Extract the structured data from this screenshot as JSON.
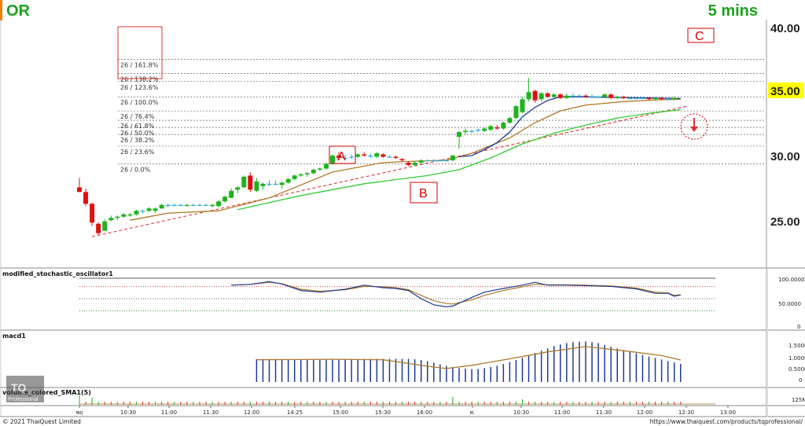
{
  "header": {
    "symbol": "OR",
    "timeframe": "5 mins",
    "symbol_color": "#1aa31a",
    "timeframe_color": "#1aa31a"
  },
  "footer": {
    "copyright": "© 2021 ThaiQuest Limited",
    "url": "https://www.thaiquest.com/products/tqprofessional/"
  },
  "price_axis": {
    "labels": [
      "40.00",
      "35.00",
      "30.00",
      "25.00"
    ],
    "current_price": "35.00",
    "current_price_bg": "#ffff00"
  },
  "fibonacci": {
    "labels": [
      "26 / 161.8%",
      "26 / 138.2%",
      "26 / 123.6%",
      "26 / 100.0%",
      "26 / 76.4%",
      "26 / 61.8%",
      "26 / 50.0%",
      "26 / 38.2%",
      "26 / 23.6%",
      "26 / 0.0%"
    ],
    "prices": [
      38.2,
      37.0,
      36.3,
      35.0,
      33.8,
      33.0,
      32.4,
      31.8,
      30.8,
      29.3
    ]
  },
  "annotations": {
    "a": "A",
    "b": "B",
    "c": "C"
  },
  "panels": {
    "stochastic": {
      "name": "modified_stochastic_oscillator1",
      "axis": [
        "100.0000",
        "50.0000",
        "0"
      ]
    },
    "macd": {
      "name": "macd1",
      "axis": [
        "1.5000",
        "1.0000",
        "0.5000",
        "0"
      ]
    },
    "volume": {
      "name": "volume_colored_SMA1(5)",
      "axis": [
        "125M"
      ]
    }
  },
  "x_axis": {
    "labels": [
      "พฤ",
      "10:30",
      "11:00",
      "11:30",
      "12:00",
      "14:25",
      "15:00",
      "15:30",
      "16:00",
      "ศ.",
      "10:30",
      "11:00",
      "11:30",
      "12:00",
      "12:30",
      "13:00"
    ]
  },
  "chart_data": {
    "type": "candlestick",
    "ylim": [
      20.5,
      41.5
    ],
    "colors": {
      "up": "#1fb31f",
      "down": "#e01010",
      "doji": "#20b0d8",
      "ma_fast": "#1f3a93",
      "ma_mid": "#b07a2a",
      "ma_slow": "#33cc33",
      "trend": "#e03030"
    },
    "candles": [
      [
        27.3,
        28.1,
        26.9,
        26.9
      ],
      [
        26.9,
        27.2,
        25.7,
        25.9
      ],
      [
        25.9,
        26.0,
        24.0,
        24.3
      ],
      [
        24.2,
        24.3,
        23.2,
        23.4
      ],
      [
        23.6,
        24.6,
        23.6,
        24.4
      ],
      [
        24.5,
        24.9,
        24.4,
        24.7
      ],
      [
        24.7,
        24.9,
        24.5,
        24.8
      ],
      [
        24.8,
        25.1,
        24.7,
        25.0
      ],
      [
        24.9,
        25.1,
        24.8,
        25.0
      ],
      [
        25.0,
        25.4,
        24.9,
        25.3
      ],
      [
        25.3,
        25.4,
        25.1,
        25.3
      ],
      [
        25.3,
        25.6,
        25.2,
        25.5
      ],
      [
        25.3,
        25.6,
        25.1,
        25.5
      ],
      [
        25.5,
        25.9,
        25.5,
        25.8
      ],
      [
        25.8,
        25.9,
        25.6,
        25.8
      ],
      [
        25.8,
        25.9,
        25.7,
        25.8
      ],
      [
        25.8,
        25.9,
        25.7,
        25.8
      ],
      [
        25.7,
        25.9,
        25.7,
        25.8
      ],
      [
        25.8,
        25.9,
        25.7,
        25.8
      ],
      [
        25.8,
        25.9,
        25.7,
        25.8
      ],
      [
        25.8,
        25.9,
        25.7,
        25.8
      ],
      [
        25.7,
        25.9,
        25.6,
        25.8
      ],
      [
        25.7,
        26.2,
        25.6,
        26.1
      ],
      [
        26.1,
        26.6,
        26.0,
        26.5
      ],
      [
        26.4,
        27.2,
        26.4,
        27.0
      ],
      [
        27.1,
        27.4,
        26.8,
        27.3
      ],
      [
        27.3,
        28.3,
        27.2,
        28.2
      ],
      [
        28.3,
        28.6,
        26.9,
        27.1
      ],
      [
        27.0,
        28.1,
        26.9,
        27.8
      ],
      [
        27.4,
        27.7,
        27.1,
        27.6
      ],
      [
        27.6,
        27.9,
        27.4,
        27.6
      ],
      [
        27.6,
        27.9,
        27.5,
        27.6
      ],
      [
        27.5,
        27.8,
        27.2,
        27.7
      ],
      [
        27.7,
        28.1,
        27.6,
        28.0
      ],
      [
        28.0,
        28.4,
        27.9,
        28.3
      ],
      [
        28.3,
        28.5,
        28.2,
        28.4
      ],
      [
        28.4,
        28.6,
        28.2,
        28.5
      ],
      [
        28.5,
        28.9,
        28.4,
        28.8
      ],
      [
        28.8,
        29.0,
        28.7,
        28.9
      ],
      [
        28.9,
        29.4,
        28.8,
        29.3
      ],
      [
        29.3,
        30.1,
        29.2,
        30.0
      ],
      [
        30.0,
        30.3,
        29.6,
        29.8
      ],
      [
        29.8,
        30.1,
        29.6,
        29.8
      ],
      [
        29.9,
        30.1,
        29.7,
        29.9
      ],
      [
        29.9,
        30.2,
        29.8,
        30.1
      ],
      [
        30.1,
        30.3,
        29.9,
        30.0
      ],
      [
        30.0,
        30.2,
        29.8,
        30.0
      ],
      [
        29.9,
        30.3,
        29.8,
        30.2
      ],
      [
        30.1,
        30.2,
        29.8,
        29.9
      ],
      [
        29.9,
        30.0,
        29.8,
        29.9
      ],
      [
        29.9,
        30.0,
        29.7,
        29.8
      ],
      [
        29.7,
        29.8,
        29.5,
        29.6
      ],
      [
        29.4,
        29.5,
        29.1,
        29.2
      ],
      [
        29.2,
        29.5,
        29.1,
        29.4
      ],
      [
        29.4,
        29.7,
        29.3,
        29.6
      ],
      [
        29.6,
        29.7,
        29.5,
        29.6
      ],
      [
        29.6,
        29.7,
        29.5,
        29.6
      ],
      [
        29.6,
        29.7,
        29.5,
        29.6
      ],
      [
        29.6,
        29.7,
        29.5,
        29.6
      ],
      [
        29.6,
        30.1,
        29.5,
        30.0
      ],
      [
        31.6,
        32.1,
        30.6,
        32.0
      ],
      [
        32.0,
        32.3,
        31.8,
        32.1
      ],
      [
        32.1,
        32.2,
        31.9,
        32.1
      ],
      [
        32.2,
        32.3,
        32.0,
        32.2
      ],
      [
        32.1,
        32.4,
        32.0,
        32.3
      ],
      [
        32.2,
        32.6,
        32.1,
        32.5
      ],
      [
        32.4,
        32.6,
        32.2,
        32.3
      ],
      [
        32.3,
        32.9,
        32.2,
        32.8
      ],
      [
        32.8,
        33.3,
        32.7,
        33.2
      ],
      [
        33.2,
        34.3,
        33.1,
        34.2
      ],
      [
        33.7,
        35.0,
        33.6,
        34.8
      ],
      [
        34.8,
        36.6,
        34.6,
        35.4
      ],
      [
        35.5,
        35.6,
        34.5,
        34.7
      ],
      [
        34.8,
        35.4,
        34.6,
        35.3
      ],
      [
        35.3,
        35.4,
        34.9,
        35.0
      ],
      [
        35.0,
        35.3,
        34.9,
        35.2
      ],
      [
        35.2,
        35.3,
        34.8,
        34.9
      ],
      [
        34.9,
        35.3,
        34.8,
        35.1
      ],
      [
        35.1,
        35.3,
        35.0,
        35.1
      ],
      [
        35.1,
        35.2,
        35.0,
        35.1
      ],
      [
        35.1,
        35.2,
        34.9,
        35.0
      ],
      [
        35.0,
        35.2,
        34.9,
        35.0
      ],
      [
        35.0,
        35.1,
        34.9,
        35.0
      ],
      [
        35.0,
        35.3,
        34.9,
        35.2
      ],
      [
        35.2,
        35.3,
        34.8,
        34.9
      ],
      [
        34.9,
        35.1,
        34.8,
        35.0
      ],
      [
        35.0,
        35.1,
        34.8,
        34.9
      ],
      [
        34.9,
        35.0,
        34.8,
        34.9
      ],
      [
        34.9,
        35.0,
        34.8,
        34.9
      ],
      [
        34.9,
        35.0,
        34.8,
        34.9
      ],
      [
        34.9,
        35.0,
        34.7,
        34.8
      ],
      [
        34.8,
        35.0,
        34.7,
        34.9
      ],
      [
        34.9,
        35.0,
        34.7,
        34.8
      ],
      [
        34.8,
        34.9,
        34.7,
        34.8
      ],
      [
        34.8,
        35.0,
        34.7,
        34.9
      ]
    ],
    "ma_fast": [
      [
        60,
        29.9
      ],
      [
        62,
        30.0
      ],
      [
        64,
        30.5
      ],
      [
        66,
        31.1
      ],
      [
        68,
        32.0
      ],
      [
        70,
        33.3
      ],
      [
        72,
        34.1
      ],
      [
        74,
        34.7
      ],
      [
        76,
        35.0
      ],
      [
        80,
        35.0
      ],
      [
        84,
        34.95
      ],
      [
        90,
        34.9
      ],
      [
        95,
        34.85
      ]
    ],
    "ma_mid": [
      [
        8,
        24.5
      ],
      [
        14,
        25.1
      ],
      [
        22,
        25.3
      ],
      [
        30,
        26.4
      ],
      [
        40,
        28.6
      ],
      [
        48,
        29.4
      ],
      [
        52,
        29.5
      ],
      [
        58,
        29.6
      ],
      [
        62,
        30.2
      ],
      [
        68,
        31.5
      ],
      [
        72,
        32.8
      ],
      [
        76,
        33.8
      ],
      [
        80,
        34.3
      ],
      [
        86,
        34.6
      ],
      [
        92,
        34.75
      ],
      [
        95,
        34.8
      ]
    ],
    "ma_slow": [
      [
        25,
        25.4
      ],
      [
        35,
        26.6
      ],
      [
        45,
        27.6
      ],
      [
        55,
        28.3
      ],
      [
        60,
        28.8
      ],
      [
        65,
        29.8
      ],
      [
        70,
        31.0
      ],
      [
        75,
        31.9
      ],
      [
        80,
        32.6
      ],
      [
        85,
        33.2
      ],
      [
        90,
        33.6
      ],
      [
        95,
        33.9
      ]
    ],
    "trendline": [
      [
        2,
        23.1
      ],
      [
        96,
        34.2
      ]
    ],
    "stochastic_k": [
      [
        24,
        83
      ],
      [
        27,
        85
      ],
      [
        30,
        92
      ],
      [
        32,
        86
      ],
      [
        35,
        70
      ],
      [
        38,
        66
      ],
      [
        42,
        73
      ],
      [
        45,
        83
      ],
      [
        48,
        77
      ],
      [
        50,
        75
      ],
      [
        52,
        70
      ],
      [
        54,
        50
      ],
      [
        56,
        35
      ],
      [
        58,
        30
      ],
      [
        59,
        32
      ],
      [
        62,
        53
      ],
      [
        64,
        66
      ],
      [
        67,
        75
      ],
      [
        70,
        83
      ],
      [
        72,
        90
      ],
      [
        74,
        83
      ],
      [
        77,
        83
      ],
      [
        80,
        82
      ],
      [
        84,
        80
      ],
      [
        88,
        74
      ],
      [
        91,
        63
      ],
      [
        93,
        63
      ],
      [
        94,
        56
      ],
      [
        95,
        59
      ]
    ],
    "stochastic_d": [
      [
        24,
        83
      ],
      [
        27,
        85
      ],
      [
        30,
        90
      ],
      [
        32,
        87
      ],
      [
        35,
        73
      ],
      [
        38,
        68
      ],
      [
        42,
        72
      ],
      [
        45,
        80
      ],
      [
        48,
        79
      ],
      [
        50,
        77
      ],
      [
        52,
        72
      ],
      [
        54,
        58
      ],
      [
        56,
        45
      ],
      [
        58,
        38
      ],
      [
        59,
        37
      ],
      [
        62,
        47
      ],
      [
        64,
        58
      ],
      [
        67,
        70
      ],
      [
        70,
        79
      ],
      [
        72,
        85
      ],
      [
        74,
        84
      ],
      [
        77,
        84
      ],
      [
        80,
        83
      ],
      [
        84,
        81
      ],
      [
        88,
        76
      ],
      [
        91,
        66
      ],
      [
        93,
        64
      ],
      [
        94,
        58
      ],
      [
        95,
        60
      ]
    ],
    "stochastic_levels": [
      80,
      50,
      20
    ],
    "macd_hist": [
      0.99,
      0.99,
      0.99,
      0.99,
      0.98,
      0.98,
      0.98,
      0.97,
      0.97,
      0.96,
      0.96,
      0.97,
      0.97,
      0.98,
      0.98,
      0.99,
      0.99,
      1.0,
      1.0,
      1.0,
      1.0,
      1.0,
      1.0,
      1.0,
      1.0,
      0.98,
      0.95,
      0.9,
      0.83,
      0.76,
      0.7,
      0.64,
      0.6,
      0.58,
      0.56,
      0.56,
      0.6,
      0.65,
      0.7,
      0.78,
      0.86,
      0.95,
      1.04,
      1.15,
      1.25,
      1.35,
      1.45,
      1.55,
      1.62,
      1.68,
      1.72,
      1.74,
      1.75,
      1.72,
      1.68,
      1.6,
      1.52,
      1.45,
      1.38,
      1.3,
      1.24,
      1.17,
      1.1,
      1.04,
      0.97,
      0.9,
      0.84,
      0.78
    ],
    "macd_signal": [
      [
        28,
        0.96
      ],
      [
        40,
        0.98
      ],
      [
        48,
        0.96
      ],
      [
        55,
        0.68
      ],
      [
        58,
        0.58
      ],
      [
        62,
        0.72
      ],
      [
        68,
        1.0
      ],
      [
        74,
        1.3
      ],
      [
        80,
        1.53
      ],
      [
        86,
        1.35
      ],
      [
        92,
        1.14
      ],
      [
        95,
        0.95
      ]
    ],
    "volume": [
      2,
      1,
      1,
      1,
      1,
      1,
      1,
      1,
      1,
      1,
      1,
      1,
      1,
      1,
      1,
      1,
      1,
      1,
      1,
      1,
      1,
      1,
      1,
      1,
      1,
      1,
      1,
      1,
      1,
      1,
      1,
      1,
      1,
      1,
      1,
      1,
      1,
      1,
      1,
      1,
      1,
      1,
      1,
      1,
      1,
      1,
      1,
      1,
      1,
      1,
      1,
      1,
      1,
      1,
      1,
      1,
      1,
      1,
      1,
      1,
      1,
      1,
      1,
      1,
      1,
      1,
      1,
      1,
      1,
      1,
      1,
      1,
      1,
      1,
      1,
      1,
      1,
      1,
      1,
      1,
      1,
      1,
      1,
      1,
      1,
      1,
      1,
      1,
      1,
      1,
      1,
      1,
      1,
      1,
      1,
      1
    ]
  }
}
